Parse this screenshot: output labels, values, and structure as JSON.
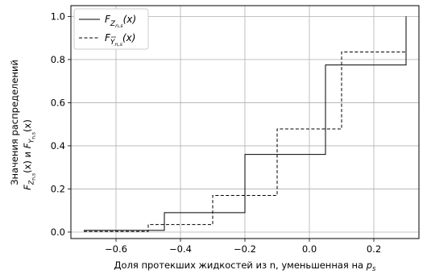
{
  "chart_data": {
    "type": "line",
    "step": true,
    "xlabel": "Доля протекших жидкостей из n, уменьшенная на p_s",
    "ylabel_line1": "Значения распределений",
    "ylabel_line2": "F_{Z_{n,s}}(x) и F_{Y_{n,s}}(x)",
    "xlim": [
      -0.74,
      0.34
    ],
    "ylim": [
      -0.03,
      1.05
    ],
    "xticks": [
      -0.6,
      -0.4,
      -0.2,
      0.0,
      0.2
    ],
    "xtick_labels": [
      "−0.6",
      "−0.4",
      "−0.2",
      "0.0",
      "0.2"
    ],
    "yticks": [
      0.0,
      0.2,
      0.4,
      0.6,
      0.8,
      1.0
    ],
    "ytick_labels": [
      "0.0",
      "0.2",
      "0.4",
      "0.6",
      "0.8",
      "1.0"
    ],
    "grid": true,
    "legend_position": "top-left",
    "series": [
      {
        "name": "F_{Z_{n,s}}(x)",
        "style": "solid",
        "color": "#000000",
        "x": [
          -0.7,
          -0.45,
          -0.45,
          -0.2,
          -0.2,
          0.05,
          0.05,
          0.3,
          0.3
        ],
        "y": [
          0.008,
          0.008,
          0.09,
          0.09,
          0.36,
          0.36,
          0.775,
          0.775,
          1.0
        ]
      },
      {
        "name": "F_{Y_{n,s}}(x)",
        "style": "dashed",
        "color": "#000000",
        "x": [
          -0.7,
          -0.5,
          -0.5,
          -0.3,
          -0.3,
          -0.1,
          -0.1,
          0.1,
          0.1,
          0.3,
          0.3
        ],
        "y": [
          0.003,
          0.003,
          0.035,
          0.035,
          0.17,
          0.17,
          0.478,
          0.478,
          0.835,
          0.835,
          1.0
        ]
      }
    ]
  }
}
